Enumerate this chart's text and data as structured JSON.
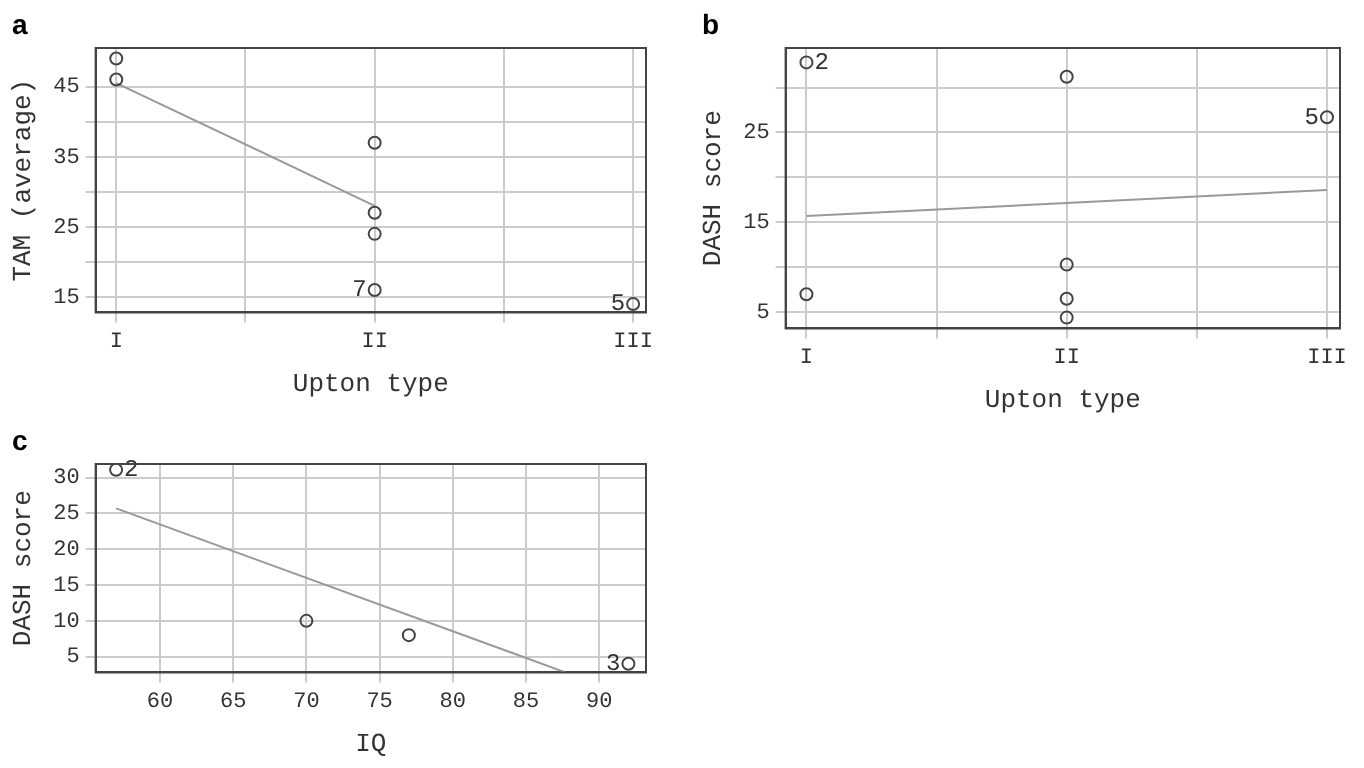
{
  "chart_data": [
    {
      "type": "scatter",
      "title": "a",
      "xlabel": "Upton type",
      "ylabel": "TAM (average)",
      "categories": [
        "I",
        "II",
        "III"
      ],
      "ylim": [
        12.8,
        50.5
      ],
      "yticks": [
        15,
        {
          "value": 20,
          "label": null
        },
        25,
        {
          "value": 30,
          "label": null
        },
        35,
        {
          "value": 40,
          "label": null
        },
        45
      ],
      "grid": true,
      "legend": false,
      "series": [
        {
          "marker": "circle",
          "color": "#444444",
          "x": [
            "I",
            "I",
            "II",
            "II",
            "II",
            "II",
            "III"
          ],
          "values": [
            49,
            46,
            37,
            27,
            24,
            16,
            14
          ]
        },
        {
          "type": "line",
          "color": "#999999",
          "x": [
            "I",
            "II"
          ],
          "values": [
            45.5,
            28
          ]
        }
      ],
      "annotations": [
        {
          "text": "7",
          "x": "II",
          "y": 16
        },
        {
          "text": "5",
          "x": "III",
          "y": 14
        }
      ]
    },
    {
      "type": "scatter",
      "title": "b",
      "xlabel": "Upton type",
      "ylabel": "DASH score",
      "categories": [
        "I",
        "II",
        "III"
      ],
      "ylim": [
        3.2,
        34.4
      ],
      "yticks": [
        5,
        {
          "value": 10,
          "label": null
        },
        15,
        {
          "value": 20,
          "label": null
        },
        25,
        {
          "value": 30,
          "label": null
        }
      ],
      "grid": true,
      "legend": false,
      "series": [
        {
          "marker": "circle",
          "color": "#444444",
          "x": [
            "I",
            "II",
            "III",
            "I",
            "II",
            "II",
            "II"
          ],
          "values": [
            32.8,
            31.2,
            26.7,
            7,
            10.3,
            6.5,
            4.4
          ]
        },
        {
          "type": "line",
          "color": "#999999",
          "x": [
            "I",
            "III"
          ],
          "values": [
            15.7,
            18.6
          ]
        }
      ],
      "annotations": [
        {
          "text": "2",
          "x": "I",
          "y": 32.8
        },
        {
          "text": "5",
          "x": "III",
          "y": 26.7
        }
      ]
    },
    {
      "type": "scatter",
      "title": "c",
      "xlabel": "IQ",
      "ylabel": "DASH score",
      "xlim": [
        55.6,
        93.2
      ],
      "ylim": [
        2.8,
        31.9
      ],
      "xticks": [
        60,
        65,
        70,
        75,
        80,
        85,
        90
      ],
      "yticks": [
        5,
        10,
        15,
        20,
        25,
        30
      ],
      "grid": true,
      "legend": false,
      "series": [
        {
          "marker": "circle",
          "color": "#444444",
          "x": [
            57,
            70,
            77,
            92
          ],
          "values": [
            31.1,
            10,
            8,
            4
          ]
        },
        {
          "type": "line",
          "color": "#999999",
          "x": [
            57,
            87.7
          ],
          "values": [
            25.7,
            2.8
          ]
        }
      ],
      "annotations": [
        {
          "text": "2",
          "x": 57,
          "y": 31.1
        },
        {
          "text": "3",
          "x": 92,
          "y": 4
        }
      ]
    }
  ]
}
